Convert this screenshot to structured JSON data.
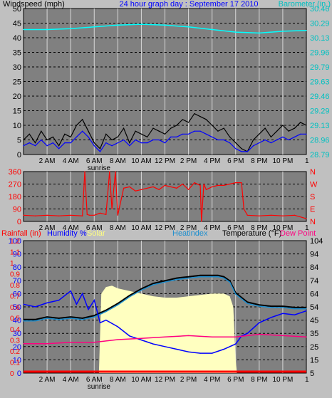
{
  "header": {
    "title": "24 hour graph day : September 17 2010"
  },
  "colors": {
    "panel_bg": "#808080",
    "frame": "#c0c0c0",
    "grid": "#d8d8d8",
    "windspeed": "#000000",
    "windavg": "#0000ff",
    "barometer": "#00ffff",
    "direction": "#ff0000",
    "humidity": "#0000ff",
    "solar": "#ffffc0",
    "heatindex": "#1e8fcf",
    "temperature": "#000000",
    "dewpoint": "#ff0080",
    "rain": "#ff0000"
  },
  "chart_data": [
    {
      "type": "line",
      "panel": "wind",
      "ylabel": "Windspeed (mph)",
      "ylabel_right": "Barometer (in.)",
      "ylim": [
        0,
        50
      ],
      "y_ticks": [
        "50",
        "45",
        "40",
        "35",
        "30",
        "25",
        "20",
        "15",
        "10",
        "5",
        "0"
      ],
      "ylim_right": [
        28.79,
        30.46
      ],
      "y_ticks_right": [
        "30.46",
        "30.29",
        "30.13",
        "29.96",
        "29.79",
        "29.63",
        "29.46",
        "29.29",
        "29.13",
        "28.96",
        "28.79"
      ],
      "x_ticks": [
        "2 AM",
        "4 AM",
        "6 AM",
        "8 AM",
        "10 AM",
        "12 PM",
        "2 PM",
        "4 PM",
        "6 PM",
        "8 PM",
        "10 PM",
        "1"
      ],
      "annotation": "sunrise",
      "series": [
        {
          "role": "gust",
          "x": [
            0,
            0.5,
            1,
            1.5,
            2,
            2.5,
            3,
            3.5,
            4,
            4.5,
            5,
            5.5,
            6,
            6.5,
            7,
            7.5,
            8,
            8.5,
            9,
            9.5,
            10,
            10.5,
            11,
            11.5,
            12,
            12.5,
            13,
            13.5,
            14,
            14.5,
            15,
            15.5,
            16,
            16.5,
            17,
            17.5,
            18,
            18.5,
            19,
            19.5,
            20,
            20.5,
            21,
            21.5,
            22,
            22.5,
            23,
            23.5,
            24
          ],
          "values": [
            5,
            7,
            4,
            8,
            5,
            6,
            3,
            7,
            6,
            10,
            12,
            8,
            4,
            2,
            7,
            5,
            6,
            9,
            4,
            8,
            7,
            6,
            9,
            8,
            7,
            9,
            10,
            12,
            11,
            14,
            13,
            12,
            10,
            8,
            9,
            6,
            4,
            2,
            1,
            5,
            7,
            9,
            6,
            8,
            10,
            8,
            9,
            11,
            10
          ]
        },
        {
          "role": "average",
          "x": [
            0,
            0.5,
            1,
            1.5,
            2,
            2.5,
            3,
            3.5,
            4,
            4.5,
            5,
            5.5,
            6,
            6.5,
            7,
            7.5,
            8,
            8.5,
            9,
            9.5,
            10,
            10.5,
            11,
            11.5,
            12,
            12.5,
            13,
            13.5,
            14,
            14.5,
            15,
            15.5,
            16,
            16.5,
            17,
            17.5,
            18,
            18.5,
            19,
            19.5,
            20,
            20.5,
            21,
            21.5,
            22,
            22.5,
            23,
            23.5,
            24
          ],
          "values": [
            3,
            4,
            3,
            5,
            3,
            4,
            2,
            4,
            4,
            6,
            8,
            6,
            3,
            1,
            4,
            3,
            4,
            5,
            3,
            5,
            4,
            4,
            5,
            5,
            4,
            6,
            6,
            7,
            7,
            8,
            8,
            7,
            6,
            5,
            5,
            4,
            2,
            1,
            1,
            3,
            4,
            5,
            4,
            5,
            6,
            5,
            6,
            7,
            7
          ]
        },
        {
          "role": "barometer",
          "axis": "right",
          "x": [
            0,
            2,
            4,
            6,
            8,
            10,
            12,
            14,
            16,
            18,
            20,
            22,
            24
          ],
          "values": [
            30.22,
            30.22,
            30.23,
            30.25,
            30.27,
            30.28,
            30.27,
            30.25,
            30.22,
            30.19,
            30.18,
            30.2,
            30.21
          ]
        }
      ]
    },
    {
      "type": "line",
      "panel": "direction",
      "ylim": [
        0,
        360
      ],
      "y_ticks": [
        "360",
        "270",
        "180",
        "90",
        "0"
      ],
      "y_ticks_right": [
        "N",
        "W",
        "S",
        "E",
        "N"
      ],
      "x_ticks": [
        "2 AM",
        "4 AM",
        "6 AM",
        "8 AM",
        "10 AM",
        "12 PM",
        "2 PM",
        "4 PM",
        "6 PM",
        "8 PM",
        "10 PM",
        "1"
      ],
      "series": [
        {
          "role": "direction",
          "x": [
            0,
            1,
            2,
            3,
            4,
            5,
            5.2,
            5.4,
            5.6,
            6,
            6.5,
            7,
            7.3,
            7.5,
            7.8,
            8,
            8.5,
            9,
            9.5,
            10,
            10.5,
            11,
            11.5,
            12,
            12.5,
            13,
            13.5,
            14,
            14.5,
            15,
            15.1,
            15.3,
            15.5,
            16,
            16.5,
            17,
            17.5,
            18,
            18.5,
            18.7,
            19,
            20,
            21,
            22,
            23,
            24
          ],
          "values": [
            45,
            40,
            45,
            40,
            45,
            40,
            360,
            50,
            45,
            45,
            60,
            50,
            360,
            90,
            360,
            45,
            240,
            250,
            220,
            230,
            240,
            250,
            230,
            260,
            250,
            240,
            270,
            230,
            280,
            260,
            0,
            270,
            230,
            250,
            260,
            260,
            270,
            280,
            280,
            90,
            45,
            40,
            45,
            40,
            45,
            20
          ]
        }
      ]
    },
    {
      "type": "line",
      "panel": "temperature",
      "ylabel": "Temperature (°F)",
      "legend": [
        "Rainfall (in)",
        "Humidity %",
        "Solar",
        "Heatindex",
        "Temperature (°F)",
        "Dew Point"
      ],
      "ylim": [
        0,
        100
      ],
      "y_ticks": [
        "100",
        "90",
        "80",
        "70",
        "60",
        "50",
        "40",
        "30",
        "20",
        "10",
        "0"
      ],
      "y_ticks_rain": [
        "1.2",
        "1.1",
        "1",
        "0.9",
        "0.8",
        "0.7",
        "0.6",
        "0.5",
        "0.4",
        "0.3",
        "0.2",
        "0.1",
        "0"
      ],
      "ylim_right": [
        5,
        104
      ],
      "y_ticks_right": [
        "104",
        "94",
        "84",
        "74",
        "64",
        "54",
        "45",
        "35",
        "25",
        "15",
        "5"
      ],
      "x_ticks": [
        "2 AM",
        "4 AM",
        "6 AM",
        "8 AM",
        "10 AM",
        "12 PM",
        "2 PM",
        "4 PM",
        "6 PM",
        "8 PM",
        "10 PM",
        "1"
      ],
      "annotation": "sunrise",
      "series": [
        {
          "role": "solar",
          "x": [
            6.4,
            6.6,
            7,
            7.5,
            8,
            9,
            10,
            11,
            12,
            13,
            14,
            15,
            16,
            17,
            17.5,
            17.8,
            18,
            18.1
          ],
          "values": [
            1,
            60,
            65,
            66,
            64,
            62,
            60,
            58,
            57,
            57,
            58,
            59,
            60,
            60,
            58,
            50,
            10,
            1
          ]
        },
        {
          "role": "temperature",
          "axis": "right",
          "x": [
            0,
            1,
            2,
            3,
            4,
            5,
            6,
            7,
            8,
            9,
            10,
            11,
            12,
            13,
            14,
            15,
            16,
            16.5,
            17,
            17.5,
            18,
            19,
            20,
            21,
            22,
            23,
            24
          ],
          "values": [
            45,
            45,
            47,
            46,
            47,
            46,
            48,
            52,
            57,
            63,
            68,
            72,
            74,
            76,
            77,
            78,
            78,
            78,
            77,
            74,
            65,
            58,
            56,
            55,
            55,
            54,
            54
          ]
        },
        {
          "role": "heatindex",
          "axis": "right",
          "x": [
            0,
            1,
            2,
            3,
            4,
            5,
            6,
            7,
            8,
            9,
            10,
            11,
            12,
            13,
            14,
            15,
            16,
            16.5,
            17,
            17.5,
            18,
            19,
            20,
            21,
            22,
            23,
            24
          ],
          "values": [
            44,
            44,
            46,
            45,
            46,
            45,
            47,
            51,
            56,
            62,
            67,
            71,
            73,
            75,
            76,
            77,
            77,
            77,
            76,
            73,
            64,
            57,
            55,
            54,
            54,
            53,
            53
          ]
        },
        {
          "role": "humidity",
          "x": [
            0,
            1,
            2,
            3,
            4,
            4.5,
            5,
            5.5,
            6,
            6.5,
            7,
            8,
            9,
            10,
            11,
            12,
            13,
            14,
            15,
            16,
            17,
            18,
            18.5,
            19,
            20,
            21,
            22,
            23,
            24
          ],
          "values": [
            52,
            50,
            53,
            55,
            62,
            52,
            60,
            48,
            55,
            38,
            40,
            35,
            28,
            25,
            22,
            20,
            18,
            16,
            15,
            15,
            18,
            22,
            28,
            30,
            38,
            42,
            45,
            44,
            47
          ]
        },
        {
          "role": "dewpoint",
          "axis": "right",
          "x": [
            0,
            2,
            4,
            6,
            8,
            10,
            12,
            14,
            16,
            18,
            20,
            22,
            24
          ],
          "values": [
            27,
            27,
            28,
            28,
            30,
            31,
            32,
            33,
            32,
            32,
            34,
            33,
            32
          ]
        },
        {
          "role": "rain",
          "x": [
            0,
            24
          ],
          "values": [
            0,
            0
          ]
        }
      ]
    }
  ]
}
